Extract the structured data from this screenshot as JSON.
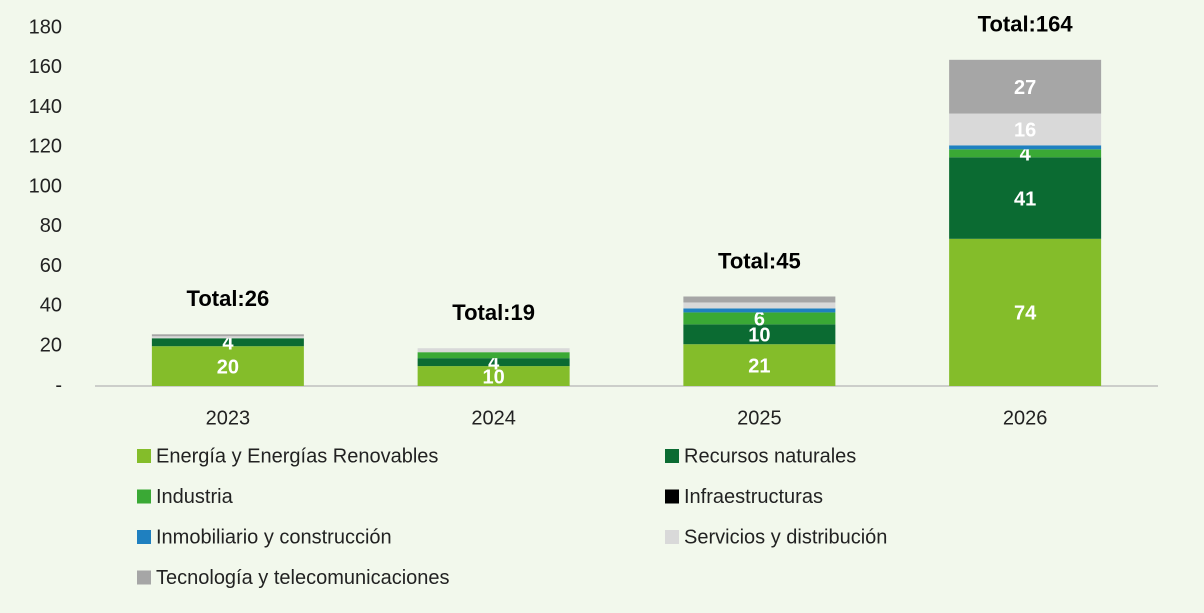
{
  "chart_data": {
    "type": "stacked_bar",
    "categories": [
      "2023",
      "2024",
      "2025",
      "2026"
    ],
    "series": [
      {
        "name": "Energía y Energías Renovables",
        "color": "#84bd2a",
        "values": [
          20,
          10,
          21,
          74
        ]
      },
      {
        "name": "Recursos naturales",
        "color": "#0b6b32",
        "values": [
          4,
          4,
          10,
          41
        ]
      },
      {
        "name": "Industria",
        "color": "#3aa935",
        "values": [
          0,
          3,
          6,
          4
        ]
      },
      {
        "name": "Infraestructuras",
        "color": "#000000",
        "values": [
          0,
          0,
          0,
          0
        ]
      },
      {
        "name": "Inmobiliario y construcción",
        "color": "#1f80c0",
        "values": [
          0,
          0,
          2,
          2
        ]
      },
      {
        "name": "Servicios y distribución",
        "color": "#d9d9d9",
        "values": [
          1,
          2,
          3,
          16
        ]
      },
      {
        "name": "Tecnología y telecomunicaciones",
        "color": "#a6a6a6",
        "values": [
          1,
          0,
          3,
          27
        ]
      }
    ],
    "totals": [
      "Total:26",
      "Total:19",
      "Total:45",
      "Total:164"
    ],
    "ylim": [
      0,
      180
    ],
    "yticks": [
      {
        "value": 0,
        "label": "-"
      },
      20,
      40,
      60,
      80,
      100,
      120,
      140,
      160,
      180
    ],
    "grid": false
  }
}
